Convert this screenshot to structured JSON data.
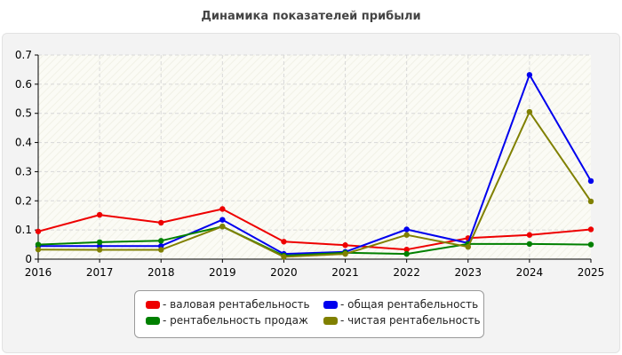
{
  "chart_data": {
    "type": "line",
    "title": "Динамика показателей прибыли",
    "x": [
      "2016",
      "2017",
      "2018",
      "2019",
      "2020",
      "2021",
      "2022",
      "2023",
      "2024",
      "2025"
    ],
    "ylim": [
      0,
      0.7
    ],
    "yticks": [
      "0",
      "0.1",
      "0.2",
      "0.3",
      "0.4",
      "0.5",
      "0.6",
      "0.7"
    ],
    "grid": true,
    "legend_position": "bottom",
    "series": [
      {
        "name": "- валовая рентабельность",
        "color": "#ee0000",
        "values": [
          0.095,
          0.152,
          0.125,
          0.172,
          0.06,
          0.048,
          0.033,
          0.072,
          0.083,
          0.102
        ]
      },
      {
        "name": "- общая рентабельность",
        "color": "#0000ee",
        "values": [
          0.045,
          0.045,
          0.045,
          0.135,
          0.018,
          0.025,
          0.102,
          0.055,
          0.632,
          0.268
        ]
      },
      {
        "name": "- рентабельность продаж",
        "color": "#008000",
        "values": [
          0.05,
          0.058,
          0.063,
          0.112,
          0.012,
          0.022,
          0.018,
          0.052,
          0.052,
          0.05
        ]
      },
      {
        "name": "- чистая рентабельность",
        "color": "#808000",
        "values": [
          0.033,
          0.032,
          0.032,
          0.112,
          0.008,
          0.018,
          0.083,
          0.042,
          0.505,
          0.198
        ]
      }
    ]
  }
}
